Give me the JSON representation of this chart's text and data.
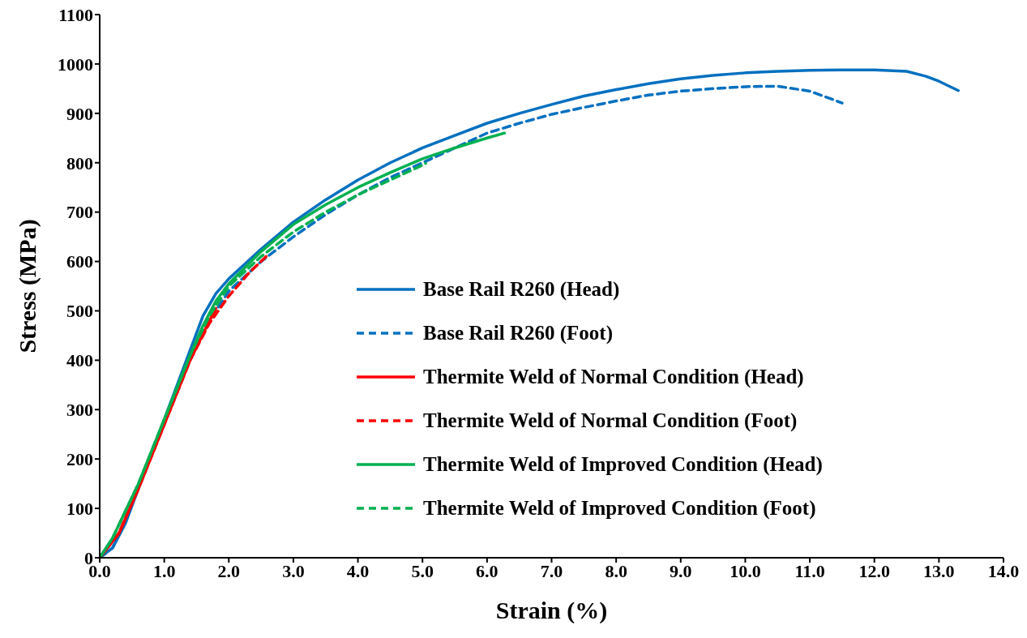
{
  "chart_data": {
    "type": "line",
    "xlabel": "Strain (%)",
    "ylabel": "Stress (MPa)",
    "xlim": [
      0,
      14
    ],
    "xticks": [
      {
        "value": 0,
        "label": "0.0"
      },
      {
        "value": 1,
        "label": "1.0"
      },
      {
        "value": 2,
        "label": "2.0"
      },
      {
        "value": 3,
        "label": "3.0"
      },
      {
        "value": 4,
        "label": "4.0"
      },
      {
        "value": 5,
        "label": "5.0"
      },
      {
        "value": 6,
        "label": "6.0"
      },
      {
        "value": 7,
        "label": "7.0"
      },
      {
        "value": 8,
        "label": "8.0"
      },
      {
        "value": 9,
        "label": "9.0"
      },
      {
        "value": 10,
        "label": "10.0"
      },
      {
        "value": 11,
        "label": "11.0"
      },
      {
        "value": 12,
        "label": "12.0"
      },
      {
        "value": 13,
        "label": "13.0"
      },
      {
        "value": 14,
        "label": "14.0"
      }
    ],
    "ylim": [
      0,
      1100
    ],
    "yticks": [
      0,
      100,
      200,
      300,
      400,
      500,
      600,
      700,
      800,
      900,
      1000,
      1100
    ],
    "grid": false,
    "legend": "right",
    "marker": "none",
    "series": [
      {
        "name": "Base Rail R260 (Head)",
        "color": "#0070c0",
        "line_style": "solid",
        "x": [
          0,
          0.2,
          0.4,
          0.6,
          0.8,
          1.0,
          1.2,
          1.4,
          1.6,
          1.8,
          2.0,
          2.5,
          3.0,
          3.5,
          4.0,
          4.5,
          5.0,
          5.5,
          6.0,
          6.5,
          7.0,
          7.5,
          8.0,
          8.5,
          9.0,
          9.5,
          10.0,
          10.5,
          11.0,
          11.5,
          12.0,
          12.5,
          12.8,
          13.0,
          13.3
        ],
        "values": [
          0,
          20,
          70,
          140,
          210,
          280,
          350,
          420,
          490,
          535,
          565,
          625,
          680,
          725,
          765,
          800,
          830,
          855,
          880,
          900,
          918,
          935,
          948,
          960,
          970,
          977,
          982,
          985,
          987,
          988,
          988,
          985,
          975,
          965,
          946
        ]
      },
      {
        "name": "Base Rail R260 (Foot)",
        "color": "#0070c0",
        "line_style": "dashed",
        "x": [
          0,
          0.2,
          0.6,
          1.0,
          1.4,
          1.7,
          2.0,
          2.5,
          3.0,
          3.5,
          4.0,
          4.5,
          5.0,
          5.5,
          6.0,
          6.5,
          7.0,
          7.5,
          8.0,
          8.5,
          9.0,
          9.5,
          10.0,
          10.5,
          11.0,
          11.5
        ],
        "values": [
          0,
          20,
          140,
          270,
          400,
          480,
          540,
          600,
          650,
          695,
          735,
          770,
          800,
          830,
          860,
          880,
          898,
          912,
          925,
          937,
          945,
          950,
          954,
          955,
          945,
          921
        ]
      },
      {
        "name": "Thermite Weld of Normal Condition (Head)",
        "color": "#ff0000",
        "line_style": "solid",
        "x": [
          0,
          0.3,
          0.6,
          1.0,
          1.4,
          1.7,
          1.8
        ],
        "values": [
          0,
          50,
          140,
          270,
          400,
          480,
          505
        ]
      },
      {
        "name": "Thermite Weld of Normal Condition (Foot)",
        "color": "#ff0000",
        "line_style": "dashed",
        "x": [
          0,
          0.3,
          0.6,
          1.0,
          1.4,
          1.7,
          2.0,
          2.3,
          2.6
        ],
        "values": [
          0,
          50,
          140,
          270,
          400,
          475,
          530,
          575,
          613
        ]
      },
      {
        "name": "Thermite Weld of Improved Condition (Head)",
        "color": "#00b050",
        "line_style": "solid",
        "x": [
          0,
          0.2,
          0.6,
          1.0,
          1.4,
          1.6,
          1.8,
          2.0,
          2.5,
          3.0,
          3.5,
          4.0,
          4.5,
          5.0,
          5.5,
          6.0,
          6.27
        ],
        "values": [
          0,
          40,
          150,
          280,
          410,
          470,
          520,
          555,
          620,
          675,
          715,
          750,
          780,
          808,
          830,
          850,
          860
        ]
      },
      {
        "name": "Thermite Weld of Improved Condition (Foot)",
        "color": "#00b050",
        "line_style": "dashed",
        "x": [
          0,
          0.2,
          0.6,
          1.0,
          1.4,
          1.7,
          2.0,
          2.5,
          3.0,
          3.5,
          4.0,
          4.5,
          5.0,
          5.05
        ],
        "values": [
          0,
          40,
          150,
          280,
          410,
          490,
          550,
          610,
          660,
          700,
          735,
          765,
          795,
          799
        ]
      }
    ]
  }
}
